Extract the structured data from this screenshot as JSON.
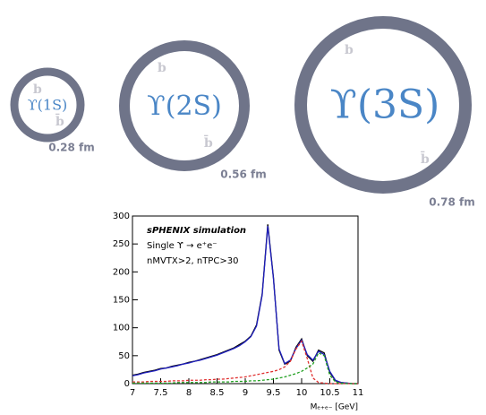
{
  "diagram": {
    "states": [
      {
        "label": "ϒ(1S)",
        "size": "0.28 fm",
        "quark": "b",
        "antiquark": "b̄"
      },
      {
        "label": "ϒ(2S)",
        "size": "0.56 fm",
        "quark": "b",
        "antiquark": "b̄"
      },
      {
        "label": "ϒ(3S)",
        "size": "0.78 fm",
        "quark": "b",
        "antiquark": "b̄"
      }
    ]
  },
  "chart_data": {
    "type": "line",
    "annotations": [
      "sPHENIX simulation",
      "Single ϒ → e⁺e⁻",
      "nMVTX>2, nTPC>30"
    ],
    "x_label": "Mₑ₊ₑ₋ [GeV]",
    "x": [
      7.0,
      7.1,
      7.2,
      7.3,
      7.4,
      7.5,
      7.6,
      7.7,
      7.8,
      7.9,
      8.0,
      8.1,
      8.2,
      8.3,
      8.4,
      8.5,
      8.6,
      8.7,
      8.8,
      8.9,
      9.0,
      9.1,
      9.2,
      9.3,
      9.4,
      9.5,
      9.6,
      9.7,
      9.8,
      9.9,
      10.0,
      10.1,
      10.2,
      10.3,
      10.4,
      10.5,
      10.6,
      10.7,
      10.8,
      10.9,
      11.0
    ],
    "series": [
      {
        "color": "#000000",
        "style": "solid",
        "values": [
          15,
          17,
          20,
          22,
          24,
          27,
          28,
          31,
          33,
          35,
          38,
          40,
          43,
          46,
          49,
          52,
          56,
          60,
          64,
          70,
          76,
          85,
          105,
          160,
          285,
          190,
          60,
          35,
          40,
          65,
          80,
          50,
          40,
          60,
          55,
          20,
          5,
          2,
          1,
          0,
          0
        ]
      },
      {
        "color": "#1f1fbf",
        "style": "solid",
        "values": [
          14,
          16,
          19,
          21,
          23,
          26,
          28,
          30,
          32,
          35,
          37,
          40,
          42,
          45,
          48,
          51,
          55,
          59,
          63,
          68,
          75,
          84,
          103,
          158,
          282,
          188,
          62,
          36,
          42,
          63,
          78,
          52,
          42,
          58,
          52,
          22,
          6,
          2,
          1,
          0,
          0
        ]
      },
      {
        "color": "#e03030",
        "style": "dashed",
        "values": [
          3,
          3,
          3,
          4,
          4,
          4,
          4,
          5,
          5,
          5,
          6,
          6,
          6,
          7,
          7,
          8,
          8,
          9,
          10,
          11,
          12,
          14,
          16,
          18,
          20,
          22,
          25,
          30,
          40,
          62,
          76,
          45,
          10,
          2,
          1,
          0,
          0,
          0,
          0,
          0,
          0
        ]
      },
      {
        "color": "#20a020",
        "style": "dashed",
        "values": [
          1,
          1,
          1,
          1,
          1,
          1,
          1,
          1,
          2,
          2,
          2,
          2,
          2,
          2,
          3,
          3,
          3,
          3,
          4,
          4,
          4,
          5,
          5,
          6,
          7,
          8,
          10,
          12,
          15,
          18,
          22,
          28,
          35,
          55,
          50,
          15,
          3,
          1,
          0,
          0,
          0
        ]
      }
    ],
    "xlim": [
      7,
      11
    ],
    "ylim": [
      0,
      300
    ],
    "xticks": [
      7,
      7.5,
      8,
      8.5,
      9,
      9.5,
      10,
      10.5,
      11
    ],
    "yticks": [
      0,
      50,
      100,
      150,
      200,
      250,
      300
    ]
  }
}
